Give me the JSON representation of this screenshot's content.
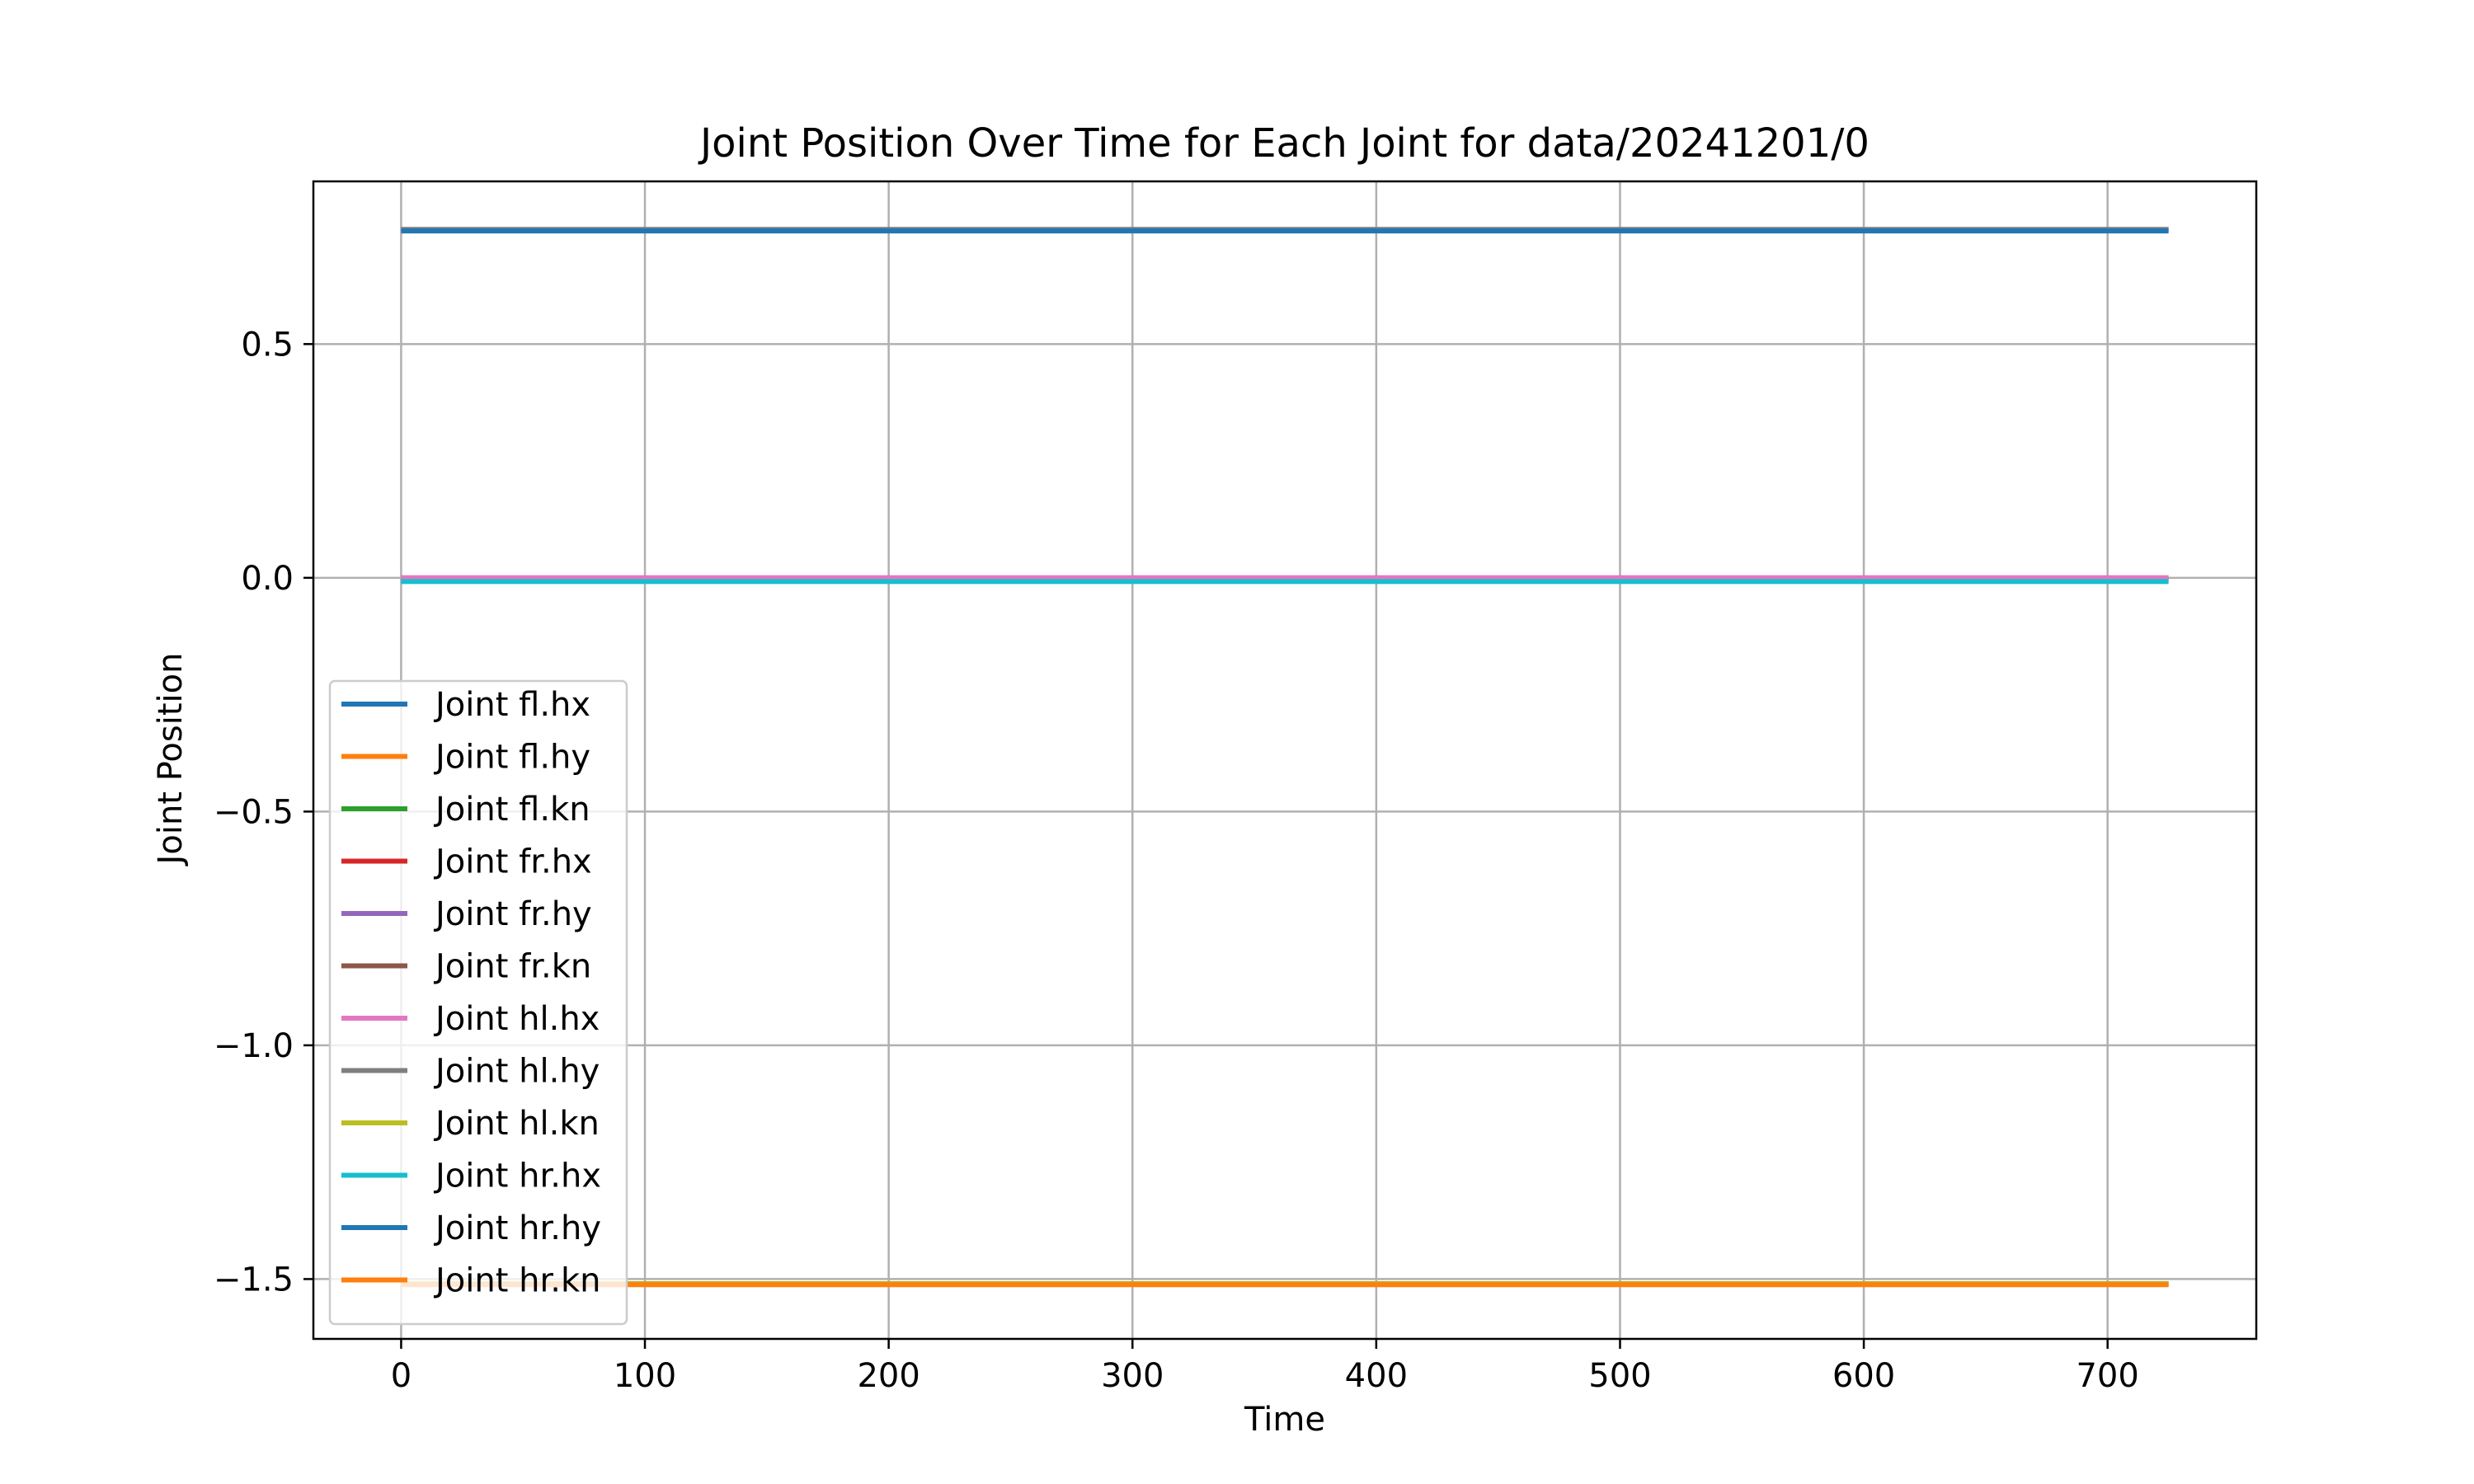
{
  "chart_data": {
    "type": "line",
    "title": "Joint Position Over Time for Each Joint for data/20241201/0",
    "xlabel": "Time",
    "ylabel": "Joint Position",
    "xlim": [
      -36,
      761
    ],
    "ylim": [
      -1.628,
      0.848
    ],
    "xticks": [
      0,
      100,
      200,
      300,
      400,
      500,
      600,
      700
    ],
    "yticks": [
      0.5,
      0.0,
      -0.5,
      -1.0,
      -1.5
    ],
    "ytick_labels": [
      "0.5",
      "0.0",
      "−0.5",
      "−1.0",
      "−1.5"
    ],
    "grid": true,
    "legend_position": "lower-left",
    "x_range": [
      0,
      725
    ],
    "series": [
      {
        "name": "Joint fl.hx",
        "color": "#1f77b4",
        "values": [
          -0.005,
          -0.005
        ]
      },
      {
        "name": "Joint fl.hy",
        "color": "#ff7f0e",
        "values": [
          0.745,
          0.745
        ]
      },
      {
        "name": "Joint fl.kn",
        "color": "#2ca02c",
        "values": [
          -1.51,
          -1.51
        ]
      },
      {
        "name": "Joint fr.hx",
        "color": "#d62728",
        "values": [
          0.0,
          0.0
        ]
      },
      {
        "name": "Joint fr.hy",
        "color": "#9467bd",
        "values": [
          0.745,
          0.745
        ]
      },
      {
        "name": "Joint fr.kn",
        "color": "#8c564b",
        "values": [
          -1.51,
          -1.51
        ]
      },
      {
        "name": "Joint hl.hx",
        "color": "#e377c2",
        "values": [
          0.0,
          0.0
        ]
      },
      {
        "name": "Joint hl.hy",
        "color": "#7f7f7f",
        "values": [
          0.745,
          0.745
        ]
      },
      {
        "name": "Joint hl.kn",
        "color": "#bcbd22",
        "values": [
          -1.51,
          -1.51
        ]
      },
      {
        "name": "Joint hr.hx",
        "color": "#17becf",
        "values": [
          -0.008,
          -0.008
        ]
      },
      {
        "name": "Joint hr.hy",
        "color": "#1f77b4",
        "values": [
          0.742,
          0.742
        ]
      },
      {
        "name": "Joint hr.kn",
        "color": "#ff7f0e",
        "values": [
          -1.512,
          -1.512
        ]
      }
    ]
  }
}
